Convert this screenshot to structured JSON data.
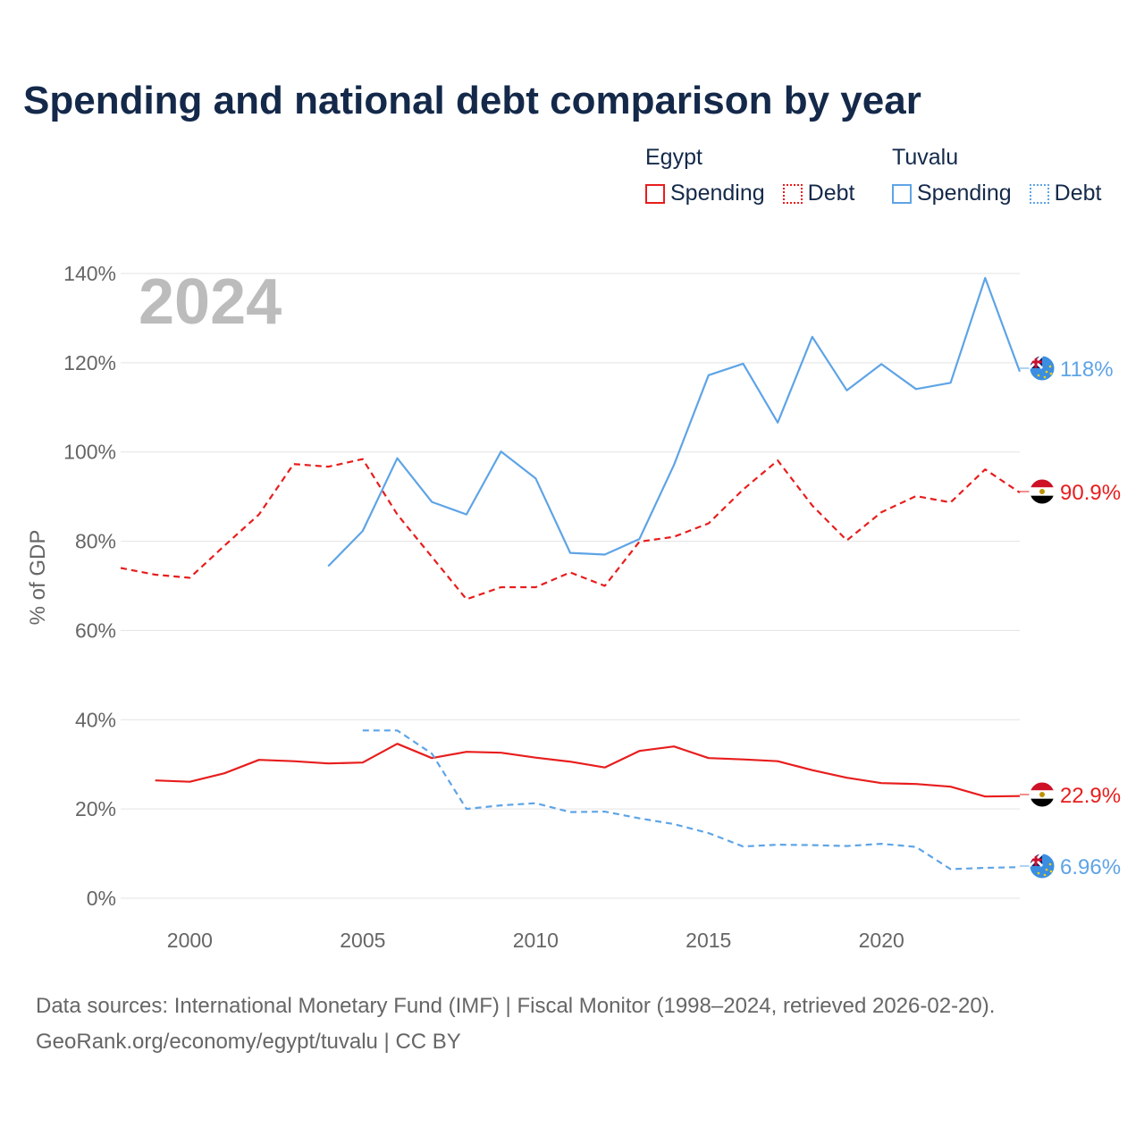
{
  "title": "Spending and national debt comparison by year",
  "colors": {
    "egypt": "#e81d1d",
    "tuvalu": "#5ea4e6",
    "grid": "#e3e3e3",
    "axis_text": "#666666",
    "year_watermark": "#bcbcbc"
  },
  "legend": {
    "egypt": {
      "country": "Egypt",
      "spending": "Spending",
      "debt": "Debt"
    },
    "tuvalu": {
      "country": "Tuvalu",
      "spending": "Spending",
      "debt": "Debt"
    }
  },
  "year_label": "2024",
  "end_labels": {
    "tuvalu_spending": "118%",
    "egypt_debt": "90.9%",
    "egypt_spending": "22.9%",
    "tuvalu_debt": "6.96%"
  },
  "footer": {
    "line1": "Data sources: International Monetary Fund (IMF) | Fiscal Monitor (1998–2024, retrieved 2026-02-20).",
    "line2": "GeoRank.org/economy/egypt/tuvalu | CC BY"
  },
  "chart_data": {
    "type": "line",
    "title": "Spending and national debt comparison by year",
    "xlabel": "",
    "ylabel": "% of GDP",
    "xlim": [
      1998,
      2024
    ],
    "ylim": [
      0,
      140
    ],
    "x_ticks": [
      2000,
      2005,
      2010,
      2015,
      2020
    ],
    "y_ticks": [
      0,
      20,
      40,
      60,
      80,
      100,
      120,
      140
    ],
    "y_tick_labels": [
      "0%",
      "20%",
      "40%",
      "60%",
      "80%",
      "100%",
      "120%",
      "140%"
    ],
    "grid": true,
    "series": [
      {
        "name": "Egypt Spending",
        "country": "Egypt",
        "style": "solid",
        "color": "#e81d1d",
        "x": [
          1999,
          2000,
          2001,
          2002,
          2003,
          2004,
          2005,
          2006,
          2007,
          2008,
          2009,
          2010,
          2011,
          2012,
          2013,
          2014,
          2015,
          2016,
          2017,
          2018,
          2019,
          2020,
          2021,
          2022,
          2023,
          2024
        ],
        "values": [
          26.4,
          26.1,
          28.0,
          31.0,
          30.7,
          30.2,
          30.4,
          34.6,
          31.4,
          32.8,
          32.6,
          31.5,
          30.6,
          29.3,
          33.0,
          34.0,
          31.4,
          31.1,
          30.7,
          28.7,
          27.0,
          25.8,
          25.6,
          25.0,
          22.8,
          22.9
        ]
      },
      {
        "name": "Egypt Debt",
        "country": "Egypt",
        "style": "dashed",
        "color": "#e81d1d",
        "x": [
          1998,
          1999,
          2000,
          2001,
          2002,
          2003,
          2004,
          2005,
          2006,
          2007,
          2008,
          2009,
          2010,
          2011,
          2012,
          2013,
          2014,
          2015,
          2016,
          2017,
          2018,
          2019,
          2020,
          2021,
          2022,
          2023,
          2024
        ],
        "values": [
          74.0,
          72.5,
          71.8,
          79.0,
          86.0,
          97.3,
          96.7,
          98.4,
          86.0,
          76.5,
          67.0,
          69.7,
          69.7,
          73.0,
          70.0,
          79.9,
          81.0,
          84.0,
          91.6,
          98.1,
          88.0,
          80.2,
          86.5,
          90.1,
          88.7,
          96.1,
          90.9
        ]
      },
      {
        "name": "Tuvalu Spending",
        "country": "Tuvalu",
        "style": "solid",
        "color": "#5ea4e6",
        "x": [
          2004,
          2005,
          2006,
          2007,
          2008,
          2009,
          2010,
          2011,
          2012,
          2013,
          2014,
          2015,
          2016,
          2017,
          2018,
          2019,
          2020,
          2021,
          2022,
          2023,
          2024
        ],
        "values": [
          74.4,
          82.3,
          98.6,
          88.8,
          86.0,
          100.1,
          94.1,
          77.4,
          77.0,
          80.5,
          97.1,
          117.2,
          119.8,
          106.6,
          125.8,
          113.8,
          119.7,
          114.1,
          115.5,
          139.0,
          118.0
        ]
      },
      {
        "name": "Tuvalu Debt",
        "country": "Tuvalu",
        "style": "dashed",
        "color": "#5ea4e6",
        "x": [
          2005,
          2006,
          2007,
          2008,
          2009,
          2010,
          2011,
          2012,
          2013,
          2014,
          2015,
          2016,
          2017,
          2018,
          2019,
          2020,
          2021,
          2022,
          2023,
          2024
        ],
        "values": [
          37.6,
          37.6,
          32.4,
          20.0,
          20.8,
          21.3,
          19.3,
          19.4,
          17.9,
          16.6,
          14.6,
          11.6,
          12.0,
          11.9,
          11.7,
          12.2,
          11.5,
          6.5,
          6.8,
          6.96
        ]
      }
    ]
  }
}
